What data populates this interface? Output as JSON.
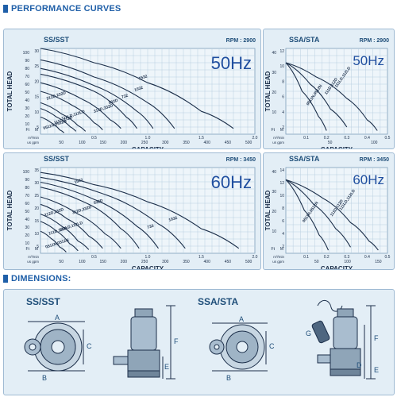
{
  "sections": {
    "performance": "PERFORMANCE CURVES",
    "dimensions": "DIMENSIONS:"
  },
  "colors": {
    "panel_bg": "#e3eef6",
    "grid": "#b9cfe0",
    "curve": "#1c2f4a",
    "title_blue": "#1f5fa8",
    "freq_blue": "#1f4e9f"
  },
  "chart_data": [
    {
      "type": "line",
      "model": "SS/SST",
      "rpm": "RPM : 2900",
      "freq": "50Hz",
      "ylabel": "TOTAL HEAD",
      "xlabel": "CAPACITY",
      "unit_m": "M",
      "unit_ft": "Ft",
      "unit_flow": "m³/min",
      "unit_gpm": "us gpm",
      "ylim": [
        0,
        30
      ],
      "xlim": [
        0,
        2.0
      ],
      "yticks_ft": [
        "100",
        "90",
        "80",
        "70",
        "60",
        "50",
        "40",
        "30",
        "20",
        "10"
      ],
      "yticks_m": [
        "30",
        "25",
        "20",
        "15",
        "10",
        "5"
      ],
      "xticks_m3": [
        "0.5",
        "1.0",
        "1.5",
        "2.0"
      ],
      "xticks_gpm": [
        "50",
        "100",
        "150",
        "200",
        "250",
        "300",
        "350",
        "400",
        "450",
        "500"
      ],
      "series": [
        {
          "name": "1532",
          "x": [
            0,
            0.5,
            1.0,
            1.5,
            1.8
          ],
          "y": [
            30,
            25,
            18,
            8,
            2
          ],
          "label_at": [
            0.92,
            19
          ]
        },
        {
          "name": "1032",
          "x": [
            0,
            0.5,
            1.0,
            1.25
          ],
          "y": [
            26,
            20,
            11,
            2
          ],
          "label_at": [
            0.88,
            15
          ]
        },
        {
          "name": "732",
          "x": [
            0,
            0.5,
            0.9,
            1.05
          ],
          "y": [
            23,
            17,
            8,
            2
          ],
          "label_at": [
            0.76,
            12.5
          ]
        },
        {
          "name": "532D",
          "x": [
            0,
            0.5,
            0.8,
            0.9
          ],
          "y": [
            21,
            15,
            6,
            2
          ],
          "label_at": [
            0.64,
            10.5
          ]
        },
        {
          "name": "313D,332D",
          "x": [
            0,
            0.4,
            0.65,
            0.75
          ],
          "y": [
            18,
            12,
            5,
            2
          ],
          "label_at": [
            0.5,
            7.5
          ]
        },
        {
          "name": "212D,232D",
          "x": [
            0,
            0.3,
            0.5,
            0.58
          ],
          "y": [
            15,
            10,
            4,
            1.5
          ],
          "label_at": [
            0.06,
            12
          ]
        },
        {
          "name": "111LD,112LD",
          "x": [
            0,
            0.2,
            0.35,
            0.42
          ],
          "y": [
            11,
            7,
            3,
            1
          ],
          "label_at": [
            0.2,
            5
          ]
        },
        {
          "name": "111D,112D",
          "x": [
            0,
            0.15,
            0.28,
            0.33
          ],
          "y": [
            9,
            6,
            2.5,
            1
          ],
          "label_at": [
            0.13,
            3.5
          ]
        },
        {
          "name": "0511N,0512N",
          "x": [
            0,
            0.1,
            0.18,
            0.22
          ],
          "y": [
            6,
            4,
            1.5,
            0.5
          ],
          "label_at": [
            0.03,
            1.6
          ]
        }
      ]
    },
    {
      "type": "line",
      "model": "SSA/STA",
      "rpm": "RPM : 2900",
      "freq": "50Hz",
      "ylabel": "TOTAL HEAD",
      "xlabel": "CAPACITY",
      "unit_m": "M",
      "unit_ft": "Ft",
      "unit_flow": "m³/min",
      "unit_gpm": "us gpm",
      "ylim": [
        0,
        12
      ],
      "xlim": [
        0,
        0.5
      ],
      "yticks_ft": [
        "40",
        "30",
        "20",
        "10"
      ],
      "yticks_m": [
        "12",
        "10",
        "8",
        "6",
        "4",
        "2"
      ],
      "xticks_m3": [
        "0.1",
        "0.2",
        "0.3",
        "0.4",
        "0.5"
      ],
      "xticks_gpm": [
        "50",
        "100"
      ],
      "series": [
        {
          "name": "111LD,112LD",
          "x": [
            0,
            0.15,
            0.3,
            0.4,
            0.45
          ],
          "y": [
            10,
            8,
            5,
            2,
            0.5
          ],
          "label_at": [
            0.25,
            6.5
          ]
        },
        {
          "name": "111D,112D",
          "x": [
            0,
            0.12,
            0.22,
            0.3
          ],
          "y": [
            10,
            7,
            3.5,
            1
          ],
          "label_at": [
            0.2,
            5.5
          ]
        },
        {
          "name": "0511N,0512N",
          "x": [
            0,
            0.08,
            0.16,
            0.2
          ],
          "y": [
            10,
            6,
            2.5,
            0.5
          ],
          "label_at": [
            0.11,
            4
          ]
        }
      ]
    },
    {
      "type": "line",
      "model": "SS/SST",
      "rpm": "RPM : 3450",
      "freq": "60Hz",
      "ylabel": "TOTAL HEAD",
      "xlabel": "CAPACITY",
      "unit_m": "M",
      "unit_ft": "Ft",
      "unit_flow": "m³/min",
      "unit_gpm": "us gpm",
      "ylim": [
        0,
        35
      ],
      "xlim": [
        0,
        2.0
      ],
      "yticks_ft": [
        "100",
        "90",
        "80",
        "70",
        "60",
        "50",
        "40",
        "30",
        "20",
        "10"
      ],
      "yticks_m": [
        "35",
        "30",
        "25",
        "20",
        "15",
        "10",
        "5"
      ],
      "xticks_m3": [
        "0.5",
        "1.0",
        "1.5",
        "2.0"
      ],
      "xticks_gpm": [
        "50",
        "100",
        "150",
        "200",
        "250",
        "300",
        "350",
        "400",
        "450",
        "500"
      ],
      "series": [
        {
          "name": "1532",
          "x": [
            0,
            0.5,
            1.0,
            1.5,
            1.85
          ],
          "y": [
            33,
            28,
            21,
            10,
            2
          ],
          "label_at": [
            0.32,
            28.5
          ]
        },
        {
          "name": "1032",
          "x": [
            0,
            0.6,
            1.1,
            1.35
          ],
          "y": [
            31,
            24,
            12,
            2
          ],
          "label_at": [
            1.2,
            13
          ]
        },
        {
          "name": "733",
          "x": [
            0,
            0.5,
            0.9,
            1.1
          ],
          "y": [
            29,
            22,
            11,
            2
          ],
          "label_at": [
            1.0,
            10
          ]
        },
        {
          "name": "532D",
          "x": [
            0,
            0.45,
            0.75,
            0.92
          ],
          "y": [
            27,
            20,
            10,
            2
          ],
          "label_at": [
            0.5,
            20
          ]
        },
        {
          "name": "312D,332D",
          "x": [
            0,
            0.35,
            0.6,
            0.75
          ],
          "y": [
            23,
            16,
            8,
            2
          ],
          "label_at": [
            0.3,
            16
          ]
        },
        {
          "name": "212D,232D",
          "x": [
            0,
            0.25,
            0.45,
            0.58
          ],
          "y": [
            20,
            14,
            7,
            2
          ],
          "label_at": [
            0.04,
            15
          ]
        },
        {
          "name": "111LD,112LD",
          "x": [
            0,
            0.2,
            0.35,
            0.45
          ],
          "y": [
            16,
            11,
            5,
            1.5
          ],
          "label_at": [
            0.18,
            9
          ]
        },
        {
          "name": "111D,112D",
          "x": [
            0,
            0.15,
            0.27,
            0.35
          ],
          "y": [
            13,
            9,
            4,
            1
          ],
          "label_at": [
            0.08,
            7.5
          ]
        },
        {
          "name": "0511N,0512N",
          "x": [
            0,
            0.1,
            0.18,
            0.24
          ],
          "y": [
            9,
            6,
            2.5,
            0.5
          ],
          "label_at": [
            0.05,
            2
          ]
        }
      ]
    },
    {
      "type": "line",
      "model": "SSA/STA",
      "rpm": "RPM : 3450",
      "freq": "60Hz",
      "ylabel": "TOTAL HEAD",
      "xlabel": "CAPACITY",
      "unit_m": "M",
      "unit_ft": "Ft",
      "unit_flow": "m³/min",
      "unit_gpm": "us gpm",
      "ylim": [
        0,
        14
      ],
      "xlim": [
        0,
        0.55
      ],
      "yticks_ft": [
        "40",
        "30",
        "20",
        "10"
      ],
      "yticks_m": [
        "14",
        "12",
        "10",
        "8",
        "6",
        "4",
        "2"
      ],
      "xticks_m3": [
        "0.1",
        "0.2",
        "0.3",
        "0.4",
        "0.5"
      ],
      "xticks_gpm": [
        "50",
        "100",
        "150"
      ],
      "series": [
        {
          "name": "111LD,112LD",
          "x": [
            0,
            0.2,
            0.35,
            0.45,
            0.5
          ],
          "y": [
            12,
            9,
            5,
            2,
            0.5
          ],
          "label_at": [
            0.3,
            7
          ]
        },
        {
          "name": "111D,112D",
          "x": [
            0,
            0.15,
            0.27,
            0.35
          ],
          "y": [
            12,
            8,
            4,
            1
          ],
          "label_at": [
            0.25,
            6
          ]
        },
        {
          "name": "0511N,0512N",
          "x": [
            0,
            0.1,
            0.18,
            0.23
          ],
          "y": [
            12,
            7,
            3,
            0.5
          ],
          "label_at": [
            0.1,
            5
          ]
        }
      ]
    }
  ],
  "dimensions": {
    "left": {
      "title": "SS/SST",
      "plan_labels": [
        "A",
        "B",
        "C"
      ],
      "side_labels": [
        "F",
        "E"
      ]
    },
    "right": {
      "title": "SSA/STA",
      "plan_labels": [
        "A",
        "B",
        "C"
      ],
      "side_labels": [
        "G",
        "F",
        "D",
        "E"
      ]
    }
  }
}
